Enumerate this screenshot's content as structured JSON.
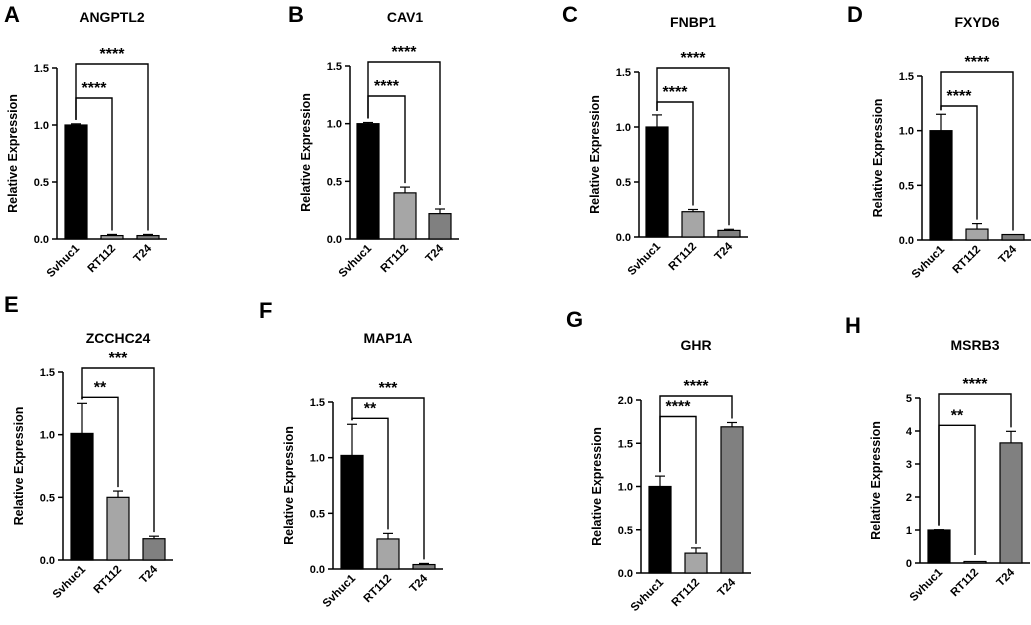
{
  "figure": {
    "background": "#ffffff"
  },
  "ylabel": "Relative Expression",
  "bar_colors": {
    "Svhuc1": "#000000",
    "RT112": "#a6a6a6",
    "T24": "#808080"
  },
  "chart_data": [
    {
      "panel": "A",
      "title": "ANGPTL2",
      "type": "bar",
      "categories": [
        "Svhuc1",
        "RT112",
        "T24"
      ],
      "values": [
        1.0,
        0.03,
        0.03
      ],
      "errors": [
        0.01,
        0.01,
        0.01
      ],
      "ylim": [
        0,
        1.5
      ],
      "yticks": [
        "0.0",
        "0.5",
        "1.0",
        "1.5"
      ],
      "significance": [
        {
          "from": "Svhuc1",
          "to": "RT112",
          "label": "****"
        },
        {
          "from": "Svhuc1",
          "to": "T24",
          "label": "****"
        }
      ]
    },
    {
      "panel": "B",
      "title": "CAV1",
      "type": "bar",
      "categories": [
        "Svhuc1",
        "RT112",
        "T24"
      ],
      "values": [
        1.0,
        0.4,
        0.22
      ],
      "errors": [
        0.01,
        0.05,
        0.04
      ],
      "ylim": [
        0,
        1.5
      ],
      "yticks": [
        "0.0",
        "0.5",
        "1.0",
        "1.5"
      ],
      "significance": [
        {
          "from": "Svhuc1",
          "to": "RT112",
          "label": "****"
        },
        {
          "from": "Svhuc1",
          "to": "T24",
          "label": "****"
        }
      ]
    },
    {
      "panel": "C",
      "title": "FNBP1",
      "type": "bar",
      "categories": [
        "Svhuc1",
        "RT112",
        "T24"
      ],
      "values": [
        1.0,
        0.23,
        0.06
      ],
      "errors": [
        0.11,
        0.02,
        0.01
      ],
      "ylim": [
        0,
        1.5
      ],
      "yticks": [
        "0.0",
        "0.5",
        "1.0",
        "1.5"
      ],
      "significance": [
        {
          "from": "Svhuc1",
          "to": "RT112",
          "label": "****"
        },
        {
          "from": "Svhuc1",
          "to": "T24",
          "label": "****"
        }
      ]
    },
    {
      "panel": "D",
      "title": "FXYD6",
      "type": "bar",
      "categories": [
        "Svhuc1",
        "RT112",
        "T24"
      ],
      "values": [
        1.0,
        0.1,
        0.05
      ],
      "errors": [
        0.15,
        0.05,
        0.0
      ],
      "ylim": [
        0,
        1.5
      ],
      "yticks": [
        "0.0",
        "0.5",
        "1.0",
        "1.5"
      ],
      "significance": [
        {
          "from": "Svhuc1",
          "to": "RT112",
          "label": "****"
        },
        {
          "from": "Svhuc1",
          "to": "T24",
          "label": "****"
        }
      ]
    },
    {
      "panel": "E",
      "title": "ZCCHC24",
      "type": "bar",
      "categories": [
        "Svhuc1",
        "RT112",
        "T24"
      ],
      "values": [
        1.01,
        0.5,
        0.17
      ],
      "errors": [
        0.24,
        0.05,
        0.02
      ],
      "ylim": [
        0,
        1.5
      ],
      "yticks": [
        "0.0",
        "0.5",
        "1.0",
        "1.5"
      ],
      "significance": [
        {
          "from": "Svhuc1",
          "to": "RT112",
          "label": "**"
        },
        {
          "from": "Svhuc1",
          "to": "T24",
          "label": "***"
        }
      ]
    },
    {
      "panel": "F",
      "title": "MAP1A",
      "type": "bar",
      "categories": [
        "Svhuc1",
        "RT112",
        "T24"
      ],
      "values": [
        1.02,
        0.27,
        0.04
      ],
      "errors": [
        0.28,
        0.05,
        0.01
      ],
      "ylim": [
        0,
        1.5
      ],
      "yticks": [
        "0.0",
        "0.5",
        "1.0",
        "1.5"
      ],
      "significance": [
        {
          "from": "Svhuc1",
          "to": "RT112",
          "label": "**"
        },
        {
          "from": "Svhuc1",
          "to": "T24",
          "label": "***"
        }
      ]
    },
    {
      "panel": "G",
      "title": "GHR",
      "type": "bar",
      "categories": [
        "Svhuc1",
        "RT112",
        "T24"
      ],
      "values": [
        1.0,
        0.23,
        1.69
      ],
      "errors": [
        0.12,
        0.06,
        0.05
      ],
      "ylim": [
        0,
        2.0
      ],
      "yticks": [
        "0.0",
        "0.5",
        "1.0",
        "1.5",
        "2.0"
      ],
      "significance": [
        {
          "from": "Svhuc1",
          "to": "RT112",
          "label": "****"
        },
        {
          "from": "Svhuc1",
          "to": "T24",
          "label": "****"
        }
      ]
    },
    {
      "panel": "H",
      "title": "MSRB3",
      "type": "bar",
      "categories": [
        "Svhuc1",
        "RT112",
        "T24"
      ],
      "values": [
        1.0,
        0.02,
        3.64
      ],
      "errors": [
        0.01,
        0.0,
        0.35
      ],
      "ylim": [
        0,
        5
      ],
      "yticks": [
        "0",
        "1",
        "2",
        "3",
        "4",
        "5"
      ],
      "significance": [
        {
          "from": "Svhuc1",
          "to": "RT112",
          "label": "**"
        },
        {
          "from": "Svhuc1",
          "to": "T24",
          "label": "****"
        }
      ]
    }
  ]
}
